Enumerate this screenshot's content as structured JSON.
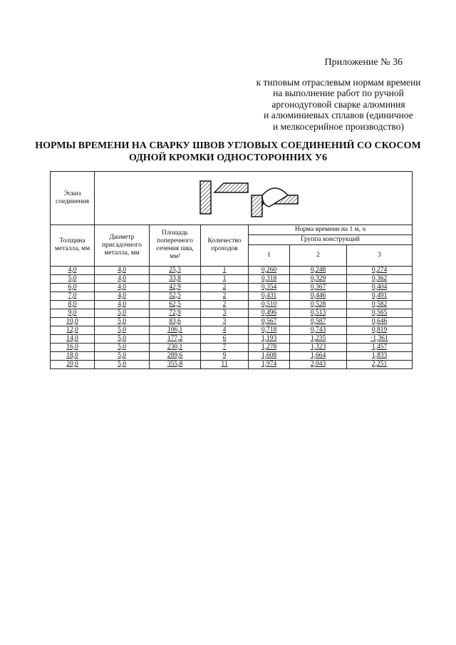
{
  "appendix": {
    "number": "Приложение № 36",
    "lines": [
      "к типовым отраслевым нормам времени",
      "на выполнение работ по ручной",
      "аргонодуговой сварке алюминия",
      "и алюминиевых сплавов (единичное",
      "и мелкосерийное производство)"
    ]
  },
  "title": [
    "НОРМЫ ВРЕМЕНИ НА СВАРКУ ШВОВ УГЛОВЫХ СОЕДИНЕНИЙ СО СКОСОМ",
    "ОДНОЙ КРОМКИ ОДНОСТОРОННИХ У6"
  ],
  "table": {
    "sketch_label": "Эскиз соединения",
    "headers": {
      "thickness": "Толщина металла, мм",
      "diameter": "Диаметр присадочного металла, мм",
      "area": "Площадь поперечного сечения шва, мм²",
      "passes": "Количество проходов",
      "norm": "Норма времени на 1 м, ч",
      "group": "Группа конструкций",
      "groups": [
        "1",
        "2",
        "3"
      ]
    },
    "rows": [
      [
        "4,0",
        "4,0",
        "25,3",
        "1",
        "0,260",
        "0,248",
        "0,274"
      ],
      [
        "5,0",
        "4,0",
        "33,8",
        "1",
        "0,318",
        "0,329",
        "0,362"
      ],
      [
        "6,0",
        "4,0",
        "42,9",
        "2",
        "0,354",
        "0,367",
        "0,404"
      ],
      [
        "7,0",
        "4,0",
        "52,5",
        "2",
        "0,431",
        "0,446",
        "0,491"
      ],
      [
        "8,0",
        "4,0",
        "62,5",
        "2",
        "0,510",
        "0,528",
        "0,582"
      ],
      [
        "9,0",
        "5,0",
        "72,9",
        "3",
        "0,496",
        "0,513",
        "0,565"
      ],
      [
        "10,0",
        "5,0",
        "83,6",
        "3",
        "0,567",
        "0,587",
        "0,646"
      ],
      [
        "12,0",
        "5,0",
        "106,1",
        "4",
        "0,718",
        "0,743",
        "0,819"
      ],
      [
        "14,0",
        "5,0",
        "177,2",
        "6",
        "1,193",
        "1,235",
        "·1,361"
      ],
      [
        "16,0",
        "5,0",
        "230,1",
        "7",
        "1,278",
        "1,323",
        "1,457"
      ],
      [
        "18,0",
        "5,0",
        "289,6",
        "9",
        "1,608",
        "1,664",
        "1,833"
      ],
      [
        "20,0",
        "5,0",
        "355,8",
        "11",
        "1,974",
        "2,043",
        "2,251"
      ]
    ]
  }
}
